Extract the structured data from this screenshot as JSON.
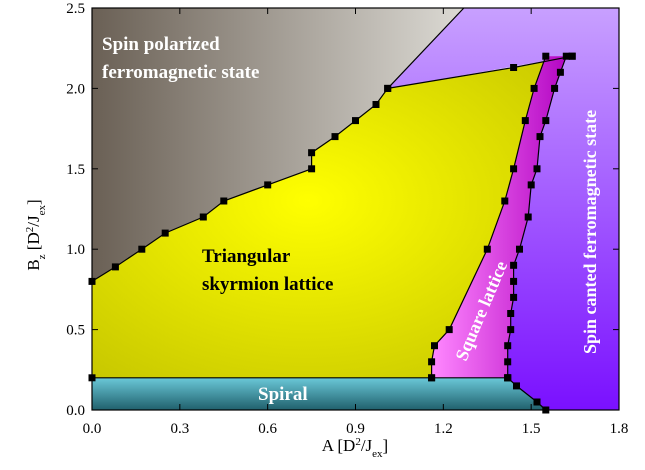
{
  "chart_data": {
    "type": "area",
    "title": "",
    "xlabel": {
      "main": "A [D",
      "sup": "2",
      "mid": "/J",
      "sub": "ex",
      "end": "]"
    },
    "ylabel": {
      "main": "B",
      "sub1": "z",
      "mid": " [D",
      "sup": "2",
      "mid2": "/J",
      "sub2": "ex",
      "end": "]"
    },
    "xlim": [
      0,
      1.8
    ],
    "ylim": [
      0,
      2.5
    ],
    "xticks": [
      "0.0",
      "0.3",
      "0.6",
      "0.9",
      "1.2",
      "1.5",
      "1.8"
    ],
    "xtick_values": [
      0,
      0.3,
      0.6,
      0.9,
      1.2,
      1.5,
      1.8
    ],
    "yticks": [
      "0.0",
      "0.5",
      "1.0",
      "1.5",
      "2.0",
      "2.5"
    ],
    "ytick_values": [
      0,
      0.5,
      1.0,
      1.5,
      2.0,
      2.5
    ],
    "regions": [
      {
        "name": "Spin polarized",
        "name2": "ferromagnetic state",
        "color": "#8a8070"
      },
      {
        "name": "Triangular",
        "name2": "skyrmion lattice",
        "color": "#e6e600"
      },
      {
        "name": "Square lattice",
        "color": "#e040e0"
      },
      {
        "name": "Spin canted ferromagnetic state",
        "color": "#a060ff"
      },
      {
        "name": "Spiral",
        "color": "#3a9fb0"
      }
    ],
    "boundaries": [
      {
        "name": "ferro-skyrmion boundary",
        "x": [
          0.0,
          0.08,
          0.17,
          0.25,
          0.38,
          0.45,
          0.6,
          0.75,
          0.75,
          0.83,
          0.9,
          0.97,
          1.01
        ],
        "y": [
          0.8,
          0.89,
          1.0,
          1.1,
          1.2,
          1.3,
          1.4,
          1.5,
          1.6,
          1.7,
          1.8,
          1.9,
          2.0
        ]
      },
      {
        "name": "top boundary",
        "x": [
          1.01,
          1.44,
          1.64
        ],
        "y": [
          2.0,
          2.13,
          2.2
        ]
      },
      {
        "name": "skyrmion-square boundary",
        "x": [
          1.16,
          1.16,
          1.17,
          1.22,
          1.35,
          1.41,
          1.44,
          1.48,
          1.51,
          1.55
        ],
        "y": [
          0.2,
          0.3,
          0.4,
          0.5,
          1.0,
          1.3,
          1.5,
          1.8,
          2.0,
          2.2
        ]
      },
      {
        "name": "square-canted boundary",
        "x": [
          1.42,
          1.42,
          1.42,
          1.43,
          1.43,
          1.44,
          1.44,
          1.44,
          1.46,
          1.49,
          1.5,
          1.52,
          1.53,
          1.55,
          1.58,
          1.6,
          1.62,
          1.64
        ],
        "y": [
          0.2,
          0.3,
          0.4,
          0.5,
          0.6,
          0.7,
          0.8,
          0.9,
          1.0,
          1.2,
          1.4,
          1.5,
          1.7,
          1.8,
          2.0,
          2.1,
          2.2,
          2.2
        ]
      },
      {
        "name": "spiral top boundary",
        "x": [
          0.0,
          1.16,
          1.42
        ],
        "y": [
          0.2,
          0.2,
          0.2
        ]
      },
      {
        "name": "spiral-canted boundary",
        "x": [
          1.42,
          1.45,
          1.52,
          1.55
        ],
        "y": [
          0.2,
          0.15,
          0.05,
          0.0
        ]
      }
    ]
  }
}
